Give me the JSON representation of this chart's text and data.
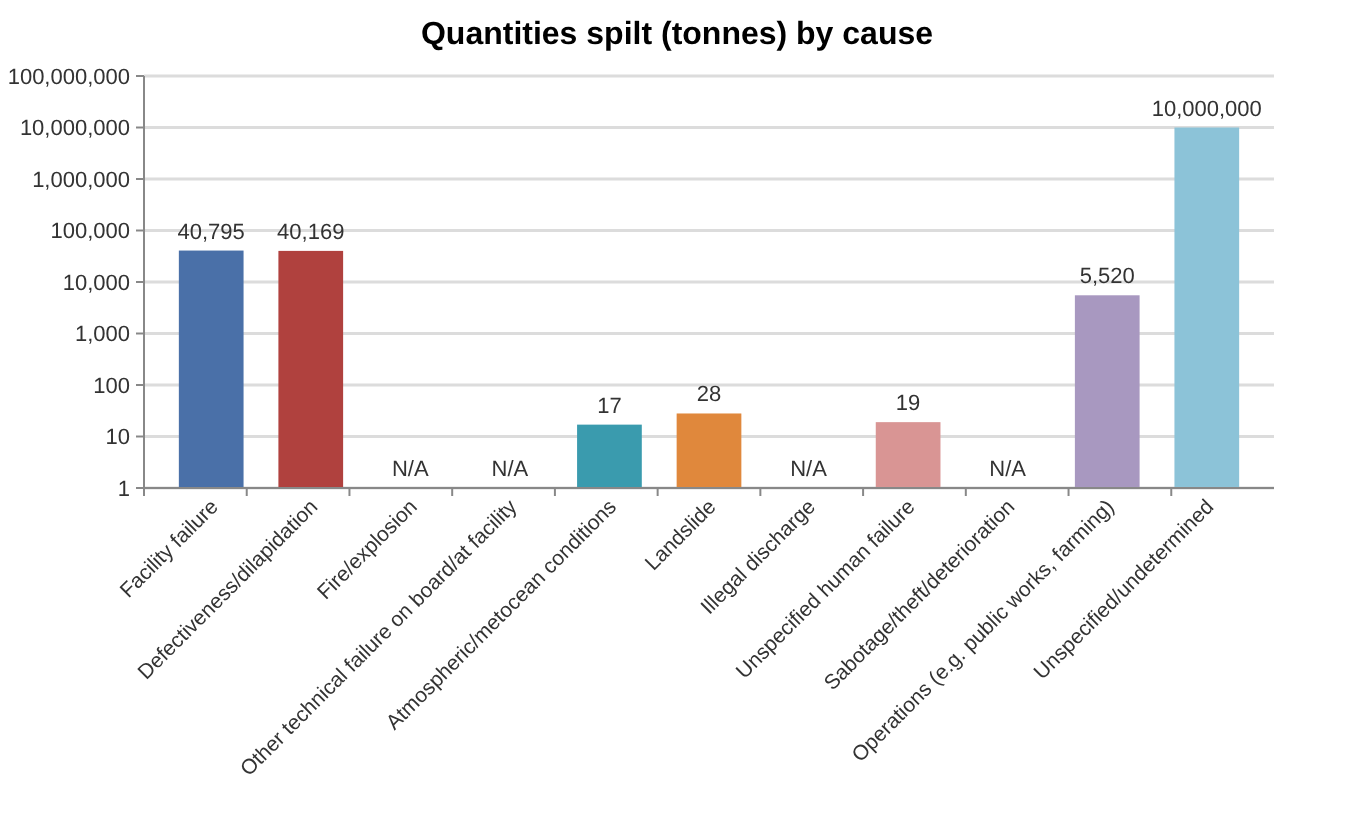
{
  "chart_data": {
    "type": "bar",
    "title": "Quantities spilt (tonnes) by cause",
    "categories": [
      "Facility failure",
      "Defectiveness/dilapidation",
      "Fire/explosion",
      "Other technical failure on board/at facility",
      "Atmospheric/metocean conditions",
      "Landslide",
      "Illegal discharge",
      "Unspecified human failure",
      "Sabotage/theft/deterioration",
      "Operations (e.g. public works, farming)",
      "Unspecified/undetermined"
    ],
    "values": [
      40795,
      40169,
      null,
      null,
      17,
      28,
      null,
      19,
      null,
      5520,
      10000000
    ],
    "value_labels": [
      "40,795",
      "40,169",
      "N/A",
      "N/A",
      "17",
      "28",
      "N/A",
      "19",
      "N/A",
      "5,520",
      "10,000,000"
    ],
    "colors": [
      "#4a70a8",
      "#b0413e",
      null,
      null,
      "#3a9bae",
      "#e0883c",
      null,
      "#d99594",
      null,
      "#a898c0",
      "#8cc3d8"
    ],
    "log": true,
    "ylim": [
      1,
      100000000
    ],
    "yticks": [
      {
        "value": 1,
        "label": "1"
      },
      {
        "value": 10,
        "label": "10"
      },
      {
        "value": 100,
        "label": "100"
      },
      {
        "value": 1000,
        "label": "1,000"
      },
      {
        "value": 10000,
        "label": "10,000"
      },
      {
        "value": 100000,
        "label": "100,000"
      },
      {
        "value": 1000000,
        "label": "1,000,000"
      },
      {
        "value": 10000000,
        "label": "10,000,000"
      },
      {
        "value": 100000000,
        "label": "100,000,000"
      }
    ],
    "grid": "y"
  }
}
